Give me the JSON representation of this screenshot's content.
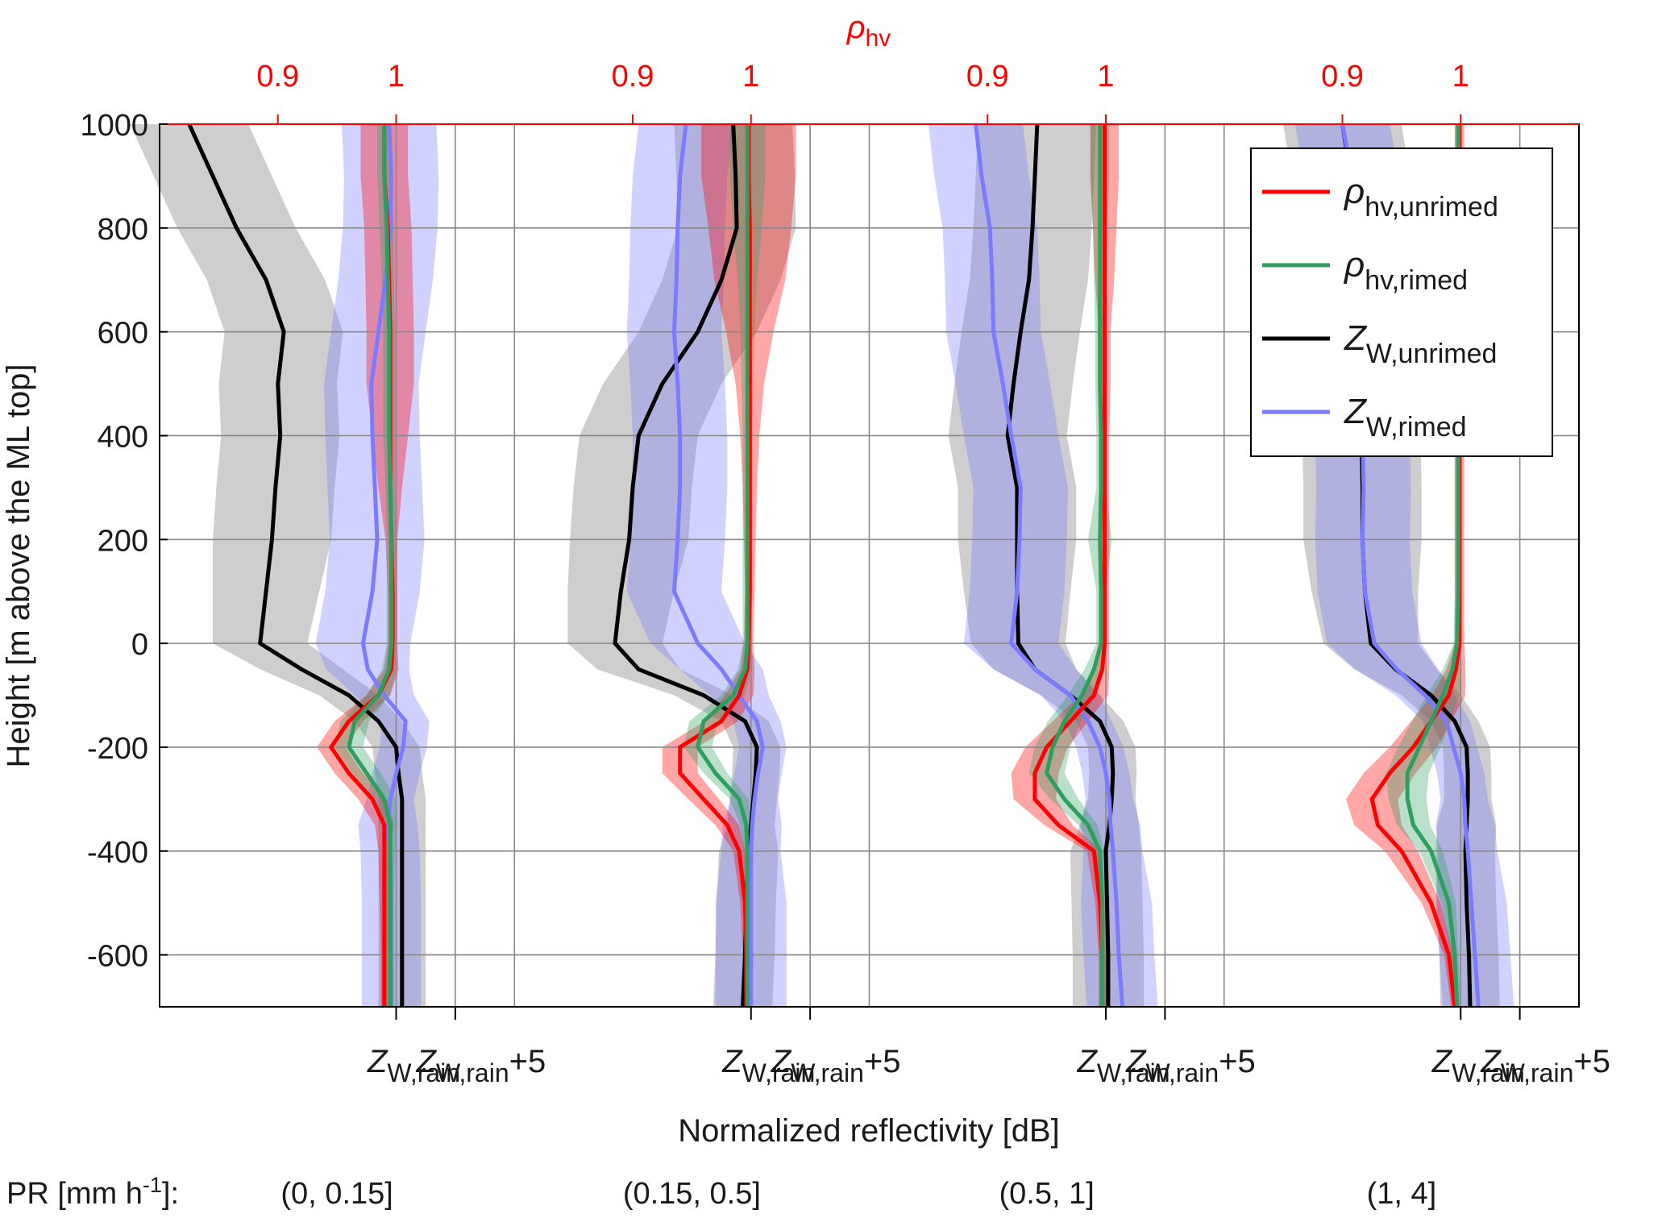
{
  "chart_data": {
    "type": "line",
    "top_axis": {
      "label_main": "ρ",
      "label_sub": "hv",
      "ticks": [
        "0.9",
        "1"
      ],
      "tick_values": [
        0.9,
        1.0
      ],
      "panel_range": [
        0.8,
        1.1
      ],
      "color": "#ff0000"
    },
    "y_axis": {
      "label": "Height [m above the ML top]",
      "range": [
        -700,
        1000
      ],
      "ticks": [
        1000,
        800,
        600,
        400,
        200,
        0,
        -200,
        -400,
        -600
      ]
    },
    "x_axis": {
      "label": "Normalized reflectivity [dB]",
      "panel_range": [
        -20,
        10
      ],
      "tick_values": [
        0,
        5
      ],
      "tick_labels": [
        {
          "main": "Z",
          "sub": "W,rain",
          "suffix": ""
        },
        {
          "main": "Z",
          "sub": "W,rain",
          "suffix": "+5"
        }
      ]
    },
    "panels": 4,
    "grid": true,
    "legend": {
      "placement": "top-right",
      "entries": [
        {
          "main": "ρ",
          "sub": "hv,unrimed",
          "color": "#ff0000"
        },
        {
          "main": "ρ",
          "sub": "hv,rimed",
          "color": "#2e9e5e"
        },
        {
          "main": "Z",
          "sub": "W,unrimed",
          "color": "#000000"
        },
        {
          "main": "Z",
          "sub": "W,rimed",
          "color": "#7b7bff"
        }
      ]
    },
    "pr": {
      "label_prefix": "PR [mm h",
      "label_exp": "-1",
      "label_suffix": "]:",
      "classes": [
        "(0, 0.15]",
        "(0.15, 0.5]",
        "(0.5, 1]",
        "(1, 4]"
      ]
    },
    "heights": [
      1000,
      900,
      800,
      700,
      600,
      500,
      400,
      300,
      200,
      100,
      0,
      -50,
      -100,
      -150,
      -200,
      -250,
      -300,
      -350,
      -400,
      -500,
      -600,
      -700
    ],
    "series_data": [
      {
        "zw_unrimed": [
          -17.5,
          -15.5,
          -13.5,
          -11,
          -9.5,
          -10,
          -9.8,
          -10.2,
          -10.5,
          -11,
          -11.5,
          -8,
          -4,
          -1.5,
          0,
          0.2,
          0.5,
          0.5,
          0.5,
          0.5,
          0.5,
          0.5
        ],
        "zw_rimed": [
          -0.6,
          -0.4,
          -0.5,
          -0.9,
          -1.5,
          -2.1,
          -2,
          -1.8,
          -1.6,
          -2,
          -2.8,
          -2.4,
          -1,
          0.8,
          0.6,
          0,
          -0.5,
          -0.7,
          -0.5,
          -0.4,
          -0.4,
          -0.4
        ],
        "rho_unrimed": [
          0.99,
          0.99,
          0.993,
          0.994,
          0.995,
          0.995,
          0.995,
          0.995,
          0.996,
          0.997,
          0.997,
          0.996,
          0.985,
          0.96,
          0.945,
          0.96,
          0.98,
          0.99,
          0.99,
          0.99,
          0.99,
          0.99
        ],
        "rho_rimed": [
          0.99,
          0.99,
          0.992,
          0.993,
          0.994,
          0.994,
          0.994,
          0.995,
          0.996,
          0.996,
          0.996,
          0.994,
          0.985,
          0.965,
          0.96,
          0.975,
          0.99,
          0.995,
          0.995,
          0.995,
          0.995,
          0.995
        ],
        "zw_unrimed_band": [
          5,
          5,
          5,
          5,
          5,
          5,
          5,
          5,
          5,
          4.5,
          4,
          3.5,
          2.5,
          2,
          2,
          2,
          2,
          2,
          2,
          2,
          2,
          2
        ],
        "zw_rimed_band": [
          4,
          4,
          4,
          4,
          4,
          4,
          4,
          4,
          4,
          4,
          4,
          3.5,
          2.5,
          2,
          2,
          2,
          2,
          2.5,
          2.5,
          2.5,
          2.5,
          2.5
        ],
        "rho_unrimed_band": [
          0.02,
          0.02,
          0.02,
          0.02,
          0.02,
          0.02,
          0.015,
          0.01,
          0.005,
          0.004,
          0.004,
          0.006,
          0.01,
          0.012,
          0.012,
          0.012,
          0.012,
          0.008,
          0.005,
          0.004,
          0.003,
          0.003
        ],
        "rho_rimed_band": [
          0.006,
          0.006,
          0.006,
          0.005,
          0.005,
          0.005,
          0.005,
          0.004,
          0.004,
          0.004,
          0.004,
          0.006,
          0.01,
          0.012,
          0.012,
          0.012,
          0.01,
          0.006,
          0.004,
          0.003,
          0.003,
          0.003
        ]
      },
      {
        "zw_unrimed": [
          -1.5,
          -1.3,
          -1.2,
          -2.5,
          -4.5,
          -7.5,
          -9.5,
          -10,
          -10.3,
          -11,
          -11.5,
          -9.5,
          -4,
          -0.5,
          0.5,
          0.4,
          0.2,
          0,
          -0.2,
          -0.4,
          -0.5,
          -0.7
        ],
        "zw_rimed": [
          -5.5,
          -6,
          -6.2,
          -6.3,
          -6.5,
          -6.2,
          -6.0,
          -6.0,
          -6.2,
          -6.5,
          -4.5,
          -2.5,
          -1.0,
          0.5,
          1.0,
          0.6,
          0.3,
          0.1,
          0,
          0,
          0,
          0
        ],
        "rho_unrimed": [
          0.998,
          0.998,
          0.999,
          0.999,
          0.999,
          0.999,
          0.999,
          0.999,
          0.999,
          0.999,
          0.998,
          0.997,
          0.99,
          0.975,
          0.94,
          0.94,
          0.96,
          0.98,
          0.99,
          0.995,
          0.996,
          0.996
        ],
        "rho_rimed": [
          0.997,
          0.997,
          0.997,
          0.997,
          0.997,
          0.997,
          0.997,
          0.997,
          0.997,
          0.997,
          0.997,
          0.995,
          0.985,
          0.96,
          0.955,
          0.97,
          0.99,
          0.996,
          0.997,
          0.997,
          0.997,
          0.997
        ],
        "zw_unrimed_band": [
          5,
          5,
          5,
          5,
          5,
          5,
          5,
          5,
          5,
          4.5,
          4,
          3.5,
          2.5,
          2,
          2,
          2,
          2,
          2,
          2.5,
          2.5,
          2.5,
          2.5
        ],
        "zw_rimed_band": [
          4,
          4,
          4,
          4,
          4,
          4,
          4,
          4,
          4,
          4,
          4,
          3.5,
          2.5,
          2,
          2,
          2,
          2,
          2.5,
          2.5,
          3,
          3,
          3
        ],
        "rho_unrimed_band": [
          0.04,
          0.04,
          0.035,
          0.03,
          0.02,
          0.012,
          0.008,
          0.006,
          0.005,
          0.004,
          0.004,
          0.006,
          0.012,
          0.014,
          0.015,
          0.015,
          0.013,
          0.01,
          0.005,
          0.004,
          0.003,
          0.003
        ],
        "rho_rimed_band": [
          0.015,
          0.015,
          0.012,
          0.008,
          0.006,
          0.005,
          0.004,
          0.004,
          0.004,
          0.004,
          0.004,
          0.006,
          0.01,
          0.012,
          0.012,
          0.01,
          0.008,
          0.005,
          0.003,
          0.003,
          0.003,
          0.003
        ]
      },
      {
        "zw_unrimed": [
          -5.8,
          -6,
          -6.2,
          -6.5,
          -7.2,
          -7.8,
          -8.3,
          -7.5,
          -7.5,
          -7.5,
          -7.4,
          -6,
          -3,
          -0.5,
          0.5,
          0.6,
          0.5,
          0.3,
          0,
          0.1,
          0.2,
          0.2
        ],
        "zw_rimed": [
          -11,
          -10.5,
          -9.8,
          -9.6,
          -9.5,
          -8.7,
          -8.0,
          -7.2,
          -7.3,
          -7.5,
          -8.0,
          -6,
          -3,
          -1.5,
          -0.5,
          0,
          0.3,
          0.4,
          0.6,
          0.9,
          1.1,
          1.4
        ],
        "rho_unrimed": [
          0.999,
          0.999,
          0.999,
          0.999,
          0.999,
          0.999,
          0.999,
          0.999,
          0.999,
          0.999,
          0.999,
          0.997,
          0.99,
          0.97,
          0.95,
          0.94,
          0.94,
          0.96,
          0.99,
          0.995,
          0.997,
          0.997
        ],
        "rho_rimed": [
          0.995,
          0.995,
          0.995,
          0.995,
          0.995,
          0.995,
          0.996,
          0.996,
          0.995,
          0.996,
          0.996,
          0.99,
          0.98,
          0.965,
          0.955,
          0.95,
          0.965,
          0.985,
          0.995,
          0.997,
          0.997,
          0.997
        ],
        "zw_unrimed_band": [
          5,
          5,
          5,
          5,
          5,
          5,
          5,
          5,
          5,
          4.5,
          4,
          3.5,
          2.5,
          2,
          2,
          2,
          2,
          2.5,
          3,
          3,
          3,
          3
        ],
        "zw_rimed_band": [
          4,
          4,
          4,
          4,
          4,
          4,
          4,
          4,
          4,
          4,
          4,
          3.5,
          2.5,
          2,
          2,
          2,
          2,
          2.5,
          2.5,
          3,
          3,
          3
        ],
        "rho_unrimed_band": [
          0.012,
          0.012,
          0.01,
          0.008,
          0.005,
          0.005,
          0.004,
          0.004,
          0.004,
          0.004,
          0.004,
          0.006,
          0.012,
          0.015,
          0.018,
          0.02,
          0.018,
          0.012,
          0.006,
          0.004,
          0.003,
          0.003
        ],
        "rho_rimed_band": [
          0.008,
          0.008,
          0.006,
          0.005,
          0.004,
          0.004,
          0.004,
          0.004,
          0.01,
          0.004,
          0.004,
          0.008,
          0.012,
          0.014,
          0.015,
          0.015,
          0.012,
          0.008,
          0.004,
          0.003,
          0.003,
          0.003
        ]
      },
      {
        "zw_unrimed": [
          -10,
          -9.3,
          -8.8,
          -8.5,
          -8.4,
          -8.4,
          -8.4,
          -8.3,
          -8.3,
          -8.1,
          -7.6,
          -5.5,
          -2.5,
          -0.5,
          0.5,
          0.6,
          0.6,
          0.5,
          0.4,
          0.5,
          0.7,
          0.8
        ],
        "zw_rimed": [
          -10,
          -9.2,
          -8.8,
          -8.6,
          -8.5,
          -8.4,
          -8.3,
          -8.2,
          -8.3,
          -8.1,
          -7.3,
          -5.4,
          -3,
          -1.2,
          -0.6,
          0,
          0.3,
          0.4,
          0.6,
          0.9,
          1.2,
          1.5
        ],
        "rho_unrimed": [
          0.999,
          0.999,
          0.999,
          0.999,
          0.999,
          0.999,
          0.999,
          0.999,
          0.999,
          0.999,
          0.999,
          0.996,
          0.99,
          0.975,
          0.96,
          0.94,
          0.925,
          0.93,
          0.95,
          0.975,
          0.99,
          0.995
        ],
        "rho_rimed": [
          0.998,
          0.998,
          0.998,
          0.998,
          0.998,
          0.998,
          0.998,
          0.998,
          0.998,
          0.998,
          0.997,
          0.993,
          0.985,
          0.975,
          0.965,
          0.955,
          0.955,
          0.96,
          0.975,
          0.99,
          0.995,
          0.997
        ],
        "zw_unrimed_band": [
          5,
          5,
          5,
          5,
          5,
          5,
          5,
          5,
          5,
          4.5,
          4,
          3.5,
          2.5,
          2,
          2,
          2,
          2,
          2.5,
          2.5,
          2.5,
          2.5,
          2.5
        ],
        "zw_rimed_band": [
          4,
          4,
          4,
          4,
          4,
          4,
          4,
          4,
          4,
          4,
          4,
          3.5,
          2.5,
          2,
          2,
          2,
          2,
          2.5,
          2.5,
          3,
          3,
          3
        ],
        "rho_unrimed_band": [
          0.004,
          0.004,
          0.004,
          0.004,
          0.004,
          0.004,
          0.004,
          0.004,
          0.004,
          0.004,
          0.004,
          0.008,
          0.014,
          0.017,
          0.02,
          0.022,
          0.022,
          0.02,
          0.014,
          0.008,
          0.004,
          0.003
        ],
        "rho_rimed_band": [
          0.003,
          0.003,
          0.003,
          0.003,
          0.003,
          0.003,
          0.003,
          0.003,
          0.003,
          0.003,
          0.003,
          0.008,
          0.014,
          0.016,
          0.018,
          0.018,
          0.016,
          0.014,
          0.01,
          0.006,
          0.003,
          0.003
        ]
      }
    ]
  }
}
